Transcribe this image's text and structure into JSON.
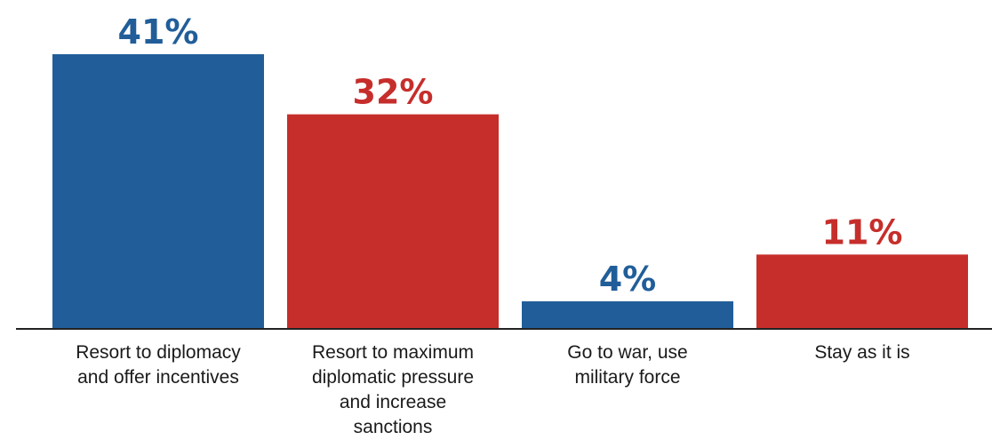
{
  "chart_data": {
    "type": "bar",
    "categories": [
      [
        "Resort to diplomacy",
        "and offer incentives"
      ],
      [
        "Resort to maximum",
        "diplomatic pressure",
        "and increase",
        "sanctions"
      ],
      [
        "Go to war, use",
        "military force"
      ],
      [
        "Stay as it is"
      ]
    ],
    "values": [
      41,
      32,
      4,
      11
    ],
    "value_labels": [
      "41%",
      "32%",
      "4%",
      "11%"
    ],
    "bar_colors": [
      "#215e99",
      "#c62e2b",
      "#215e99",
      "#c62e2b"
    ],
    "title": "",
    "xlabel": "",
    "ylabel": "",
    "ylim": [
      0,
      41
    ],
    "grid": false,
    "legend": "none"
  }
}
